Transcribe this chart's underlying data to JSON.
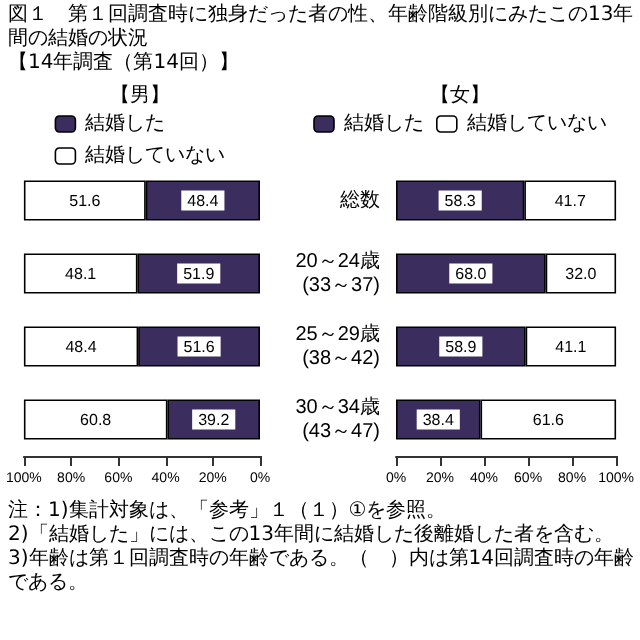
{
  "chart_data": [
    {
      "type": "bar",
      "title": "【男】",
      "orientation": "horizontal",
      "stacked": true,
      "legend": "top",
      "grid": false,
      "tick_labels": "x",
      "annotations": [
        "図１　第１回調査時に独身だった者の性、年齢階級別にみたこの13年間の結婚の状況",
        "【14年調査（第14回）】"
      ],
      "categories": [
        "総数",
        "20～24歳(33～37)",
        "25～29歳(38～42)",
        "30～34歳(43～47)"
      ],
      "xlim": [
        100,
        0
      ],
      "xticks": [
        {
          "value": 100,
          "label": "100%"
        },
        {
          "value": 80,
          "label": "80%"
        },
        {
          "value": 60,
          "label": "60%"
        },
        {
          "value": 40,
          "label": "40%"
        },
        {
          "value": 20,
          "label": "20%"
        },
        {
          "value": 0,
          "label": "0%"
        }
      ],
      "series": [
        {
          "name": "結婚した",
          "color": "#3b2d5e",
          "values": [
            48.4,
            51.9,
            51.6,
            39.2
          ],
          "value_labels": [
            "48.4",
            "51.9",
            "51.6",
            "39.2"
          ]
        },
        {
          "name": "結婚していない",
          "color": "#ffffff",
          "values": [
            51.6,
            48.1,
            48.4,
            60.8
          ],
          "value_labels": [
            "51.6",
            "48.1",
            "48.4",
            "60.8"
          ]
        }
      ]
    },
    {
      "type": "bar",
      "title": "【女】",
      "orientation": "horizontal",
      "stacked": true,
      "legend": "top",
      "grid": false,
      "annotations": [
        "注：1)集計対象は、「参考」１（１）①を参照。",
        "2)「結婚した」には、この13年間に結婚した後離婚した者を含む。",
        "3)年齢は第１回調査時の年齢である。（　）内は第14回調査時の年齢である。"
      ],
      "categories": [
        "総数",
        "20～24歳(33～37)",
        "25～29歳(38～42)",
        "30～34歳(43～47)"
      ],
      "xlim": [
        0,
        100
      ],
      "xticks": [
        {
          "value": 0,
          "label": "0%"
        },
        {
          "value": 20,
          "label": "20%"
        },
        {
          "value": 40,
          "label": "40%"
        },
        {
          "value": 60,
          "label": "60%"
        },
        {
          "value": 80,
          "label": "80%"
        },
        {
          "value": 100,
          "label": "100%"
        }
      ],
      "series": [
        {
          "name": "結婚した",
          "color": "#3b2d5e",
          "values": [
            58.3,
            68.0,
            58.9,
            38.4
          ],
          "value_labels": [
            "58.3",
            "68.0",
            "58.9",
            "38.4"
          ]
        },
        {
          "name": "結婚していない",
          "color": "#ffffff",
          "values": [
            41.7,
            32.0,
            41.1,
            61.6
          ],
          "value_labels": [
            "41.7",
            "32.0",
            "41.1",
            "61.6"
          ]
        }
      ]
    }
  ]
}
